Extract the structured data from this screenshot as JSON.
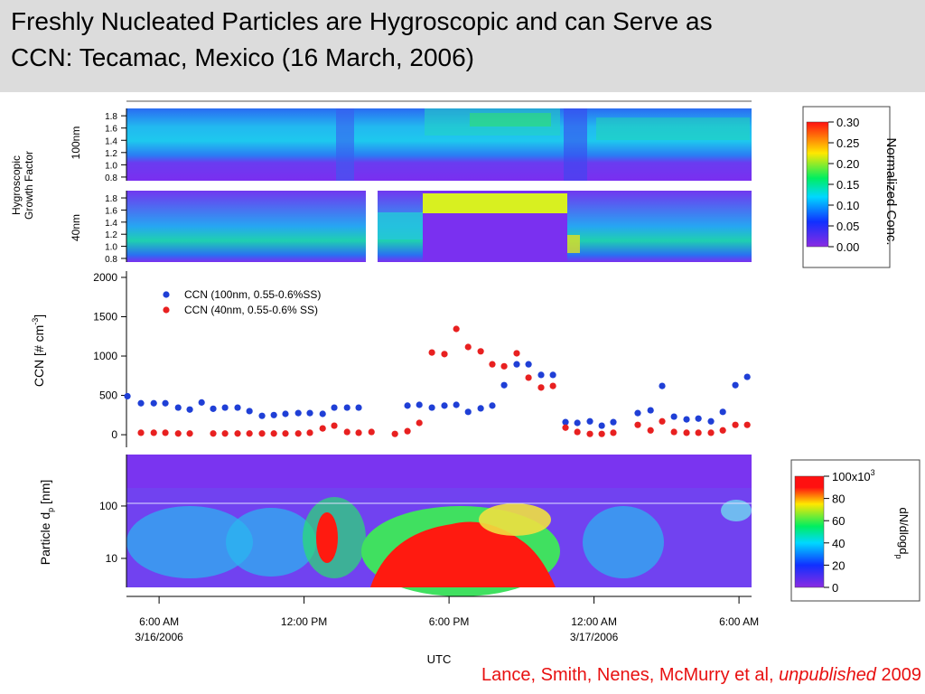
{
  "title_lines": [
    "Freshly Nucleated Particles are Hygroscopic and can Serve as",
    "CCN: Tecamac, Mexico (16 March, 2006)"
  ],
  "group_label": [
    "Hygroscopic",
    "Growth Factor"
  ],
  "citation": {
    "authors": "Lance, Smith, Nenes, McMurry et al,",
    "italic": "unpublished",
    "year": "2009"
  },
  "chart_data": [
    {
      "type": "heatmap",
      "row_label": "100nm",
      "ylim": [
        0.74,
        1.92
      ],
      "yticks": [
        {
          "value": 0.8,
          "label": "0.8"
        },
        {
          "value": 1,
          "label": "1.0"
        },
        1.2,
        1.4,
        1.6,
        1.8
      ],
      "colorbar": {
        "label": "Normalized Conc.",
        "lim": [
          0,
          0.3
        ],
        "ticks": [
          {
            "value": 0,
            "label": "0.00"
          },
          {
            "value": 0.05,
            "label": "0.05"
          },
          {
            "value": 0.1,
            "label": "0.10"
          },
          {
            "value": 0.15,
            "label": "0.15"
          },
          {
            "value": 0.2,
            "label": "0.20"
          },
          {
            "value": 0.25,
            "label": "0.25"
          },
          {
            "value": 0.3,
            "label": "0.30"
          }
        ]
      }
    },
    {
      "type": "heatmap",
      "row_label": "40nm",
      "ylim": [
        0.74,
        1.92
      ],
      "yticks": [
        {
          "value": 0.8,
          "label": "0.8"
        },
        {
          "value": 1,
          "label": "1.0"
        },
        1.2,
        1.4,
        1.6,
        1.8
      ]
    },
    {
      "type": "scatter",
      "ylabel": [
        "CCN [# cm",
        "-3",
        "]"
      ],
      "ylim": [
        -160,
        2080
      ],
      "yticks": [
        0,
        500,
        1000,
        1500,
        2000
      ],
      "xlim": [
        4.65,
        30.52
      ],
      "legend": "upper left",
      "series": [
        {
          "name": "CCN (100nm, 0.55-0.6%SS)",
          "color": "#1f3fd6",
          "x": [
            4.69,
            5.25,
            5.78,
            6.26,
            6.79,
            7.27,
            7.76,
            8.24,
            8.73,
            9.25,
            9.74,
            10.26,
            10.75,
            11.23,
            11.76,
            12.24,
            12.77,
            13.25,
            13.78,
            14.26,
            16.28,
            16.77,
            17.29,
            17.81,
            18.3,
            18.79,
            19.31,
            19.79,
            20.28,
            20.8,
            21.29,
            21.81,
            22.3,
            22.82,
            23.31,
            23.83,
            24.32,
            24.8,
            25.81,
            26.34,
            26.82,
            27.31,
            27.83,
            28.32,
            28.84,
            29.33,
            29.85,
            30.34
          ],
          "values": [
            490,
            400,
            400,
            400,
            345,
            320,
            410,
            330,
            345,
            345,
            300,
            240,
            250,
            265,
            275,
            275,
            265,
            345,
            345,
            345,
            370,
            380,
            345,
            370,
            380,
            290,
            335,
            370,
            630,
            895,
            895,
            760,
            760,
            160,
            150,
            170,
            115,
            160,
            275,
            310,
            620,
            230,
            195,
            205,
            170,
            290,
            630,
            735
          ]
        },
        {
          "name": "CCN (40nm, 0.55-0.6% SS)",
          "color": "#e82020",
          "x": [
            5.25,
            5.78,
            6.26,
            6.79,
            7.27,
            8.24,
            8.73,
            9.25,
            9.74,
            10.26,
            10.75,
            11.23,
            11.76,
            12.24,
            12.77,
            13.25,
            13.78,
            14.26,
            14.79,
            15.76,
            16.28,
            16.77,
            17.29,
            17.81,
            18.3,
            18.79,
            19.31,
            19.79,
            20.28,
            20.8,
            21.29,
            21.81,
            22.3,
            22.82,
            23.31,
            23.83,
            24.32,
            24.8,
            25.81,
            26.34,
            26.82,
            27.31,
            27.83,
            28.32,
            28.84,
            29.33,
            29.85,
            30.34
          ],
          "values": [
            25,
            25,
            25,
            15,
            15,
            15,
            15,
            15,
            15,
            15,
            15,
            15,
            15,
            25,
            80,
            115,
            35,
            25,
            35,
            10,
            45,
            150,
            1045,
            1025,
            1345,
            1115,
            1060,
            895,
            870,
            1035,
            725,
            600,
            620,
            90,
            35,
            10,
            10,
            25,
            125,
            55,
            170,
            35,
            25,
            25,
            25,
            55,
            125,
            125
          ]
        }
      ]
    },
    {
      "type": "heatmap",
      "ylabel": [
        "Particle d",
        "p",
        " [nm]"
      ],
      "log": true,
      "ylim": [
        2.8,
        960
      ],
      "yticks": [
        10,
        100
      ],
      "xlim": [
        4.65,
        30.52
      ],
      "xticks": [
        {
          "value": 6,
          "label": "6:00 AM"
        },
        {
          "value": 12,
          "label": "12:00 PM"
        },
        {
          "value": 18,
          "label": "6:00 PM"
        },
        {
          "value": 24,
          "label": "12:00 AM"
        },
        {
          "value": 30,
          "label": "6:00 AM"
        }
      ],
      "xtick_dates": [
        {
          "value": 6,
          "label": "3/16/2006"
        },
        {
          "value": 24,
          "label": "3/17/2006"
        }
      ],
      "xlabel": "UTC",
      "colorbar": {
        "label": [
          "dN/dlogd",
          "p"
        ],
        "lim": [
          0,
          100
        ],
        "ticks": [
          0,
          20,
          40,
          60,
          80,
          {
            "value": 100,
            "label": "100x10",
            "exponent": "3"
          }
        ]
      }
    }
  ]
}
